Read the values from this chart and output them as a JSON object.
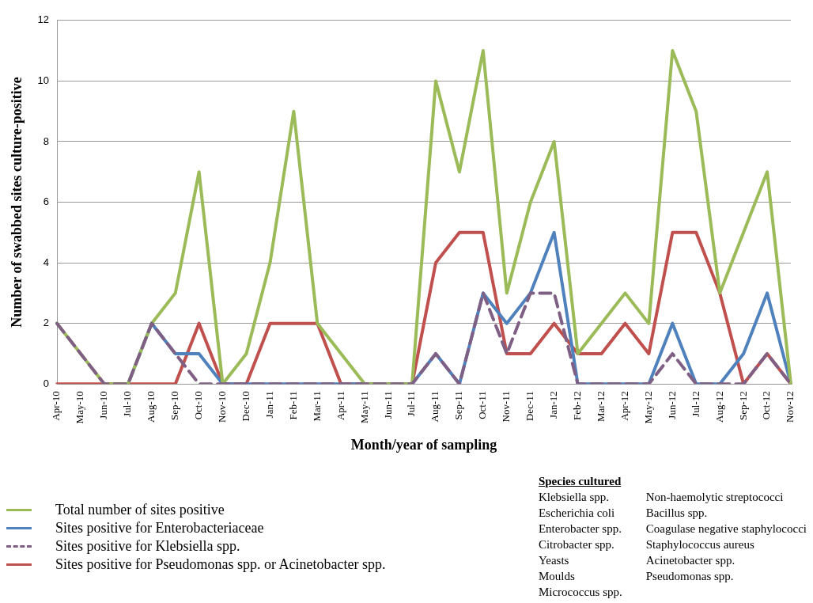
{
  "chart_data": {
    "type": "line",
    "xlabel": "Month/year of sampling",
    "ylabel": "Number of swabbed sites culture-positive",
    "categories": [
      "Apr-10",
      "May-10",
      "Jun-10",
      "Jul-10",
      "Aug-10",
      "Sep-10",
      "Oct-10",
      "Nov-10",
      "Dec-10",
      "Jan-11",
      "Feb-11",
      "Mar-11",
      "Apr-11",
      "May-11",
      "Jun-11",
      "Jul-11",
      "Aug-11",
      "Sep-11",
      "Oct-11",
      "Nov-11",
      "Dec-11",
      "Jan-12",
      "Feb-12",
      "Mar-12",
      "Apr-12",
      "May-12",
      "Jun-12",
      "Jul-12",
      "Aug-12",
      "Sep-12",
      "Oct-12",
      "Nov-12"
    ],
    "series": [
      {
        "name": "Total number of sites positive",
        "color": "#9bbb59",
        "values": [
          2,
          1,
          0,
          0,
          2,
          3,
          7,
          0,
          1,
          4,
          9,
          2,
          1,
          0,
          0,
          0,
          10,
          7,
          11,
          3,
          6,
          8,
          1,
          2,
          3,
          2,
          11,
          9,
          3,
          5,
          7,
          0
        ]
      },
      {
        "name": "Sites positive for Enterobacteriaceae",
        "color": "#4f81bd",
        "values": [
          null,
          null,
          null,
          0,
          2,
          1,
          1,
          0,
          0,
          0,
          0,
          0,
          0,
          0,
          0,
          0,
          1,
          0,
          3,
          2,
          3,
          5,
          0,
          0,
          0,
          0,
          2,
          0,
          0,
          1,
          3,
          0
        ]
      },
      {
        "name": "Sites positive for Klebsiella spp.",
        "color": "#7f6084",
        "line_style": "dashed",
        "values": [
          2,
          1,
          0,
          0,
          2,
          1,
          0,
          0,
          0,
          0,
          0,
          0,
          0,
          0,
          0,
          0,
          1,
          0,
          3,
          1,
          3,
          3,
          0,
          0,
          0,
          0,
          1,
          0,
          0,
          0,
          1,
          0
        ]
      },
      {
        "name": "Sites positive for Pseudomonas spp. or Acinetobacter spp.",
        "color": "#c0504d",
        "values": [
          0,
          0,
          0,
          0,
          0,
          0,
          2,
          0,
          0,
          2,
          2,
          2,
          0,
          0,
          0,
          0,
          4,
          5,
          5,
          1,
          1,
          2,
          1,
          1,
          2,
          1,
          5,
          5,
          3,
          0,
          1,
          0
        ]
      }
    ],
    "ylim": [
      0,
      12
    ],
    "yticks": [
      0,
      2,
      4,
      6,
      8,
      10,
      12
    ],
    "grid": "y",
    "legend": "bottom left",
    "marker": "none",
    "line_style": "solid",
    "annotations": [
      "Species cultured",
      "Klebsiella spp.",
      "Escherichia coli",
      "Enterobacter spp.",
      "Citrobacter spp.",
      "Yeasts",
      "Moulds",
      "Micrococcus spp.",
      "Non-haemolytic streptococci",
      "Bacillus spp.",
      "Coagulase negative staphylococci",
      "Staphylococcus aureus",
      "Acinetobacter spp.",
      "Pseudomonas spp."
    ]
  }
}
